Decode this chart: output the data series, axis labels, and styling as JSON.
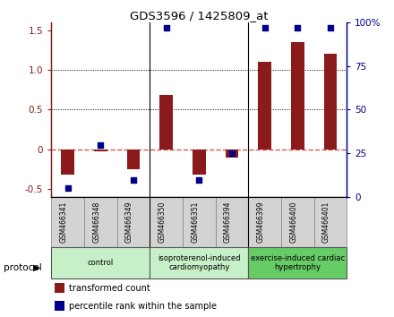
{
  "title": "GDS3596 / 1425809_at",
  "samples": [
    "GSM466341",
    "GSM466348",
    "GSM466349",
    "GSM466350",
    "GSM466351",
    "GSM466394",
    "GSM466399",
    "GSM466400",
    "GSM466401"
  ],
  "transformed_count": [
    -0.32,
    -0.02,
    -0.25,
    0.68,
    -0.32,
    -0.1,
    1.1,
    1.35,
    1.2
  ],
  "percentile_rank": [
    5,
    30,
    10,
    97,
    10,
    25,
    97,
    97,
    97
  ],
  "groups": [
    {
      "label": "control",
      "start": 0,
      "end": 3,
      "color": "#c8f0c8"
    },
    {
      "label": "isoproterenol-induced\ncardiomyopathy",
      "start": 3,
      "end": 6,
      "color": "#c8f0c8"
    },
    {
      "label": "exercise-induced cardiac\nhypertrophy",
      "start": 6,
      "end": 9,
      "color": "#66cc66"
    }
  ],
  "bar_color": "#8b1a1a",
  "dot_color": "#00008b",
  "zero_line_color": "#cd5c5c",
  "sample_box_color": "#d3d3d3",
  "ylim": [
    -0.6,
    1.6
  ],
  "y2lim": [
    0,
    100
  ],
  "yticks_left": [
    -0.5,
    0.0,
    0.5,
    1.0,
    1.5
  ],
  "yticks_right": [
    0,
    25,
    50,
    75,
    100
  ],
  "dotted_lines": [
    0.5,
    1.0
  ],
  "bar_width": 0.4,
  "legend_items": [
    "transformed count",
    "percentile rank within the sample"
  ]
}
